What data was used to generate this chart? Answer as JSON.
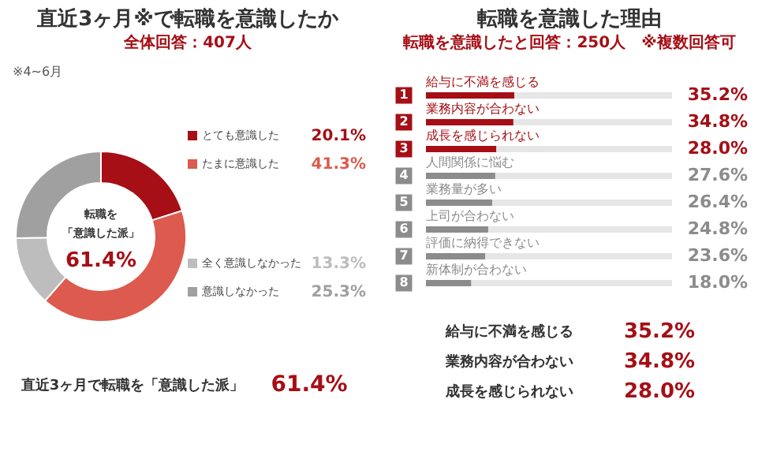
{
  "chart_data": [
    {
      "type": "donut",
      "title": "直近3ヶ月※で転職を意識したか",
      "subtitle": "全体回答：407人",
      "categories": [
        "とても意識した",
        "たまに意識した",
        "全く意識しなかった",
        "意識しなかった"
      ],
      "values": [
        20.1,
        41.3,
        13.3,
        25.3
      ],
      "colors": [
        "#a50f15",
        "#dc5a4e",
        "#bdbdbd",
        "#a0a0a0"
      ],
      "value_labels": [
        "20.1%",
        "41.3%",
        "13.3%",
        "25.3%"
      ],
      "legend": "right",
      "annotations": [
        "※4~6月",
        "転職を",
        "「意識した派」",
        "61.4%",
        "直近3ヶ月で転職を「意識した派」",
        "61.4%"
      ]
    },
    {
      "type": "bar",
      "orientation": "horizontal",
      "title": "転職を意識した理由",
      "subtitle": "転職を意識したと回答：250人　※複数回答可",
      "categories": [
        "給与に不満を感じる",
        "業務内容が合わない",
        "成長を感じられない",
        "人間関係に悩む",
        "業務量が多い",
        "上司が合わない",
        "評価に納得できない",
        "新体制が合わない"
      ],
      "values": [
        35.2,
        34.8,
        28.0,
        27.6,
        26.4,
        24.8,
        23.6,
        18.0
      ],
      "colors": [
        "#a50f15",
        "#a50f15",
        "#a50f15",
        "#8c8c8c",
        "#8c8c8c",
        "#8c8c8c",
        "#8c8c8c",
        "#8c8c8c"
      ],
      "tick_labels": "y",
      "value_labels": [
        "35.2%",
        "34.8%",
        "28.0%",
        "27.6%",
        "26.4%",
        "24.8%",
        "23.6%",
        "18.0%"
      ],
      "annotations": [
        "1",
        "2",
        "3",
        "4",
        "5",
        "6",
        "7",
        "8",
        "給与に不満を感じる",
        "35.2%",
        "業務内容が合わない",
        "34.8%",
        "成長を感じられない",
        "28.0%"
      ]
    }
  ]
}
